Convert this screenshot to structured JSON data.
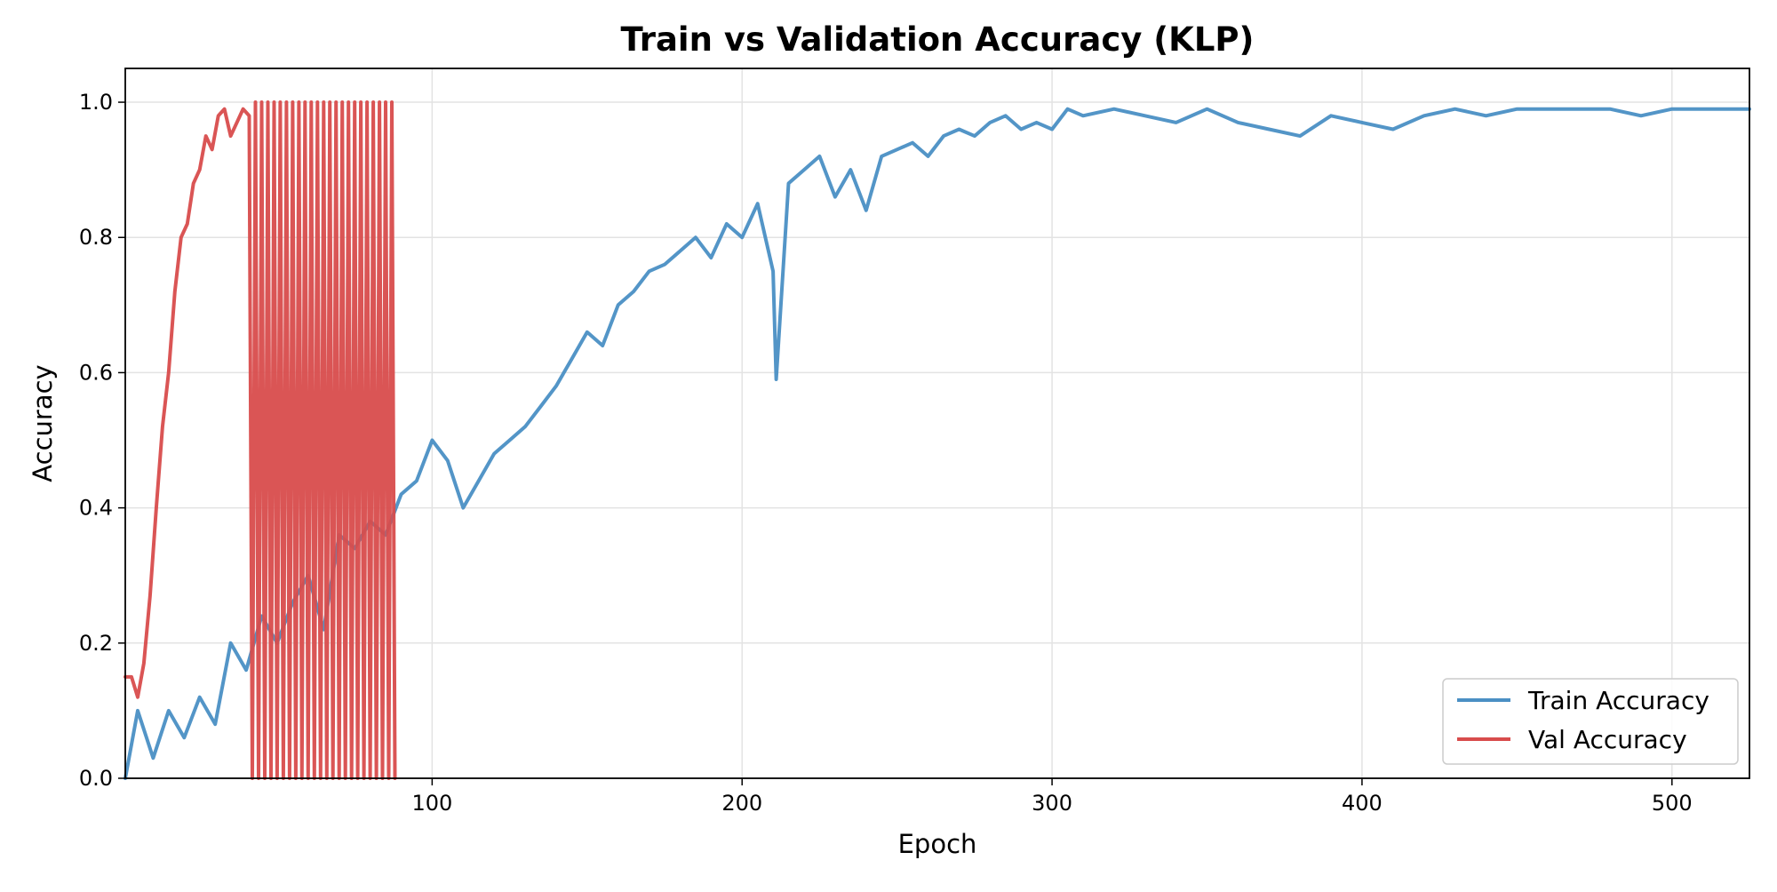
{
  "chart_data": {
    "type": "line",
    "title": "Train vs Validation Accuracy (KLP)",
    "xlabel": "Epoch",
    "ylabel": "Accuracy",
    "xlim": [
      1,
      525
    ],
    "ylim": [
      0.0,
      1.05
    ],
    "x_ticks": [
      100,
      200,
      300,
      400,
      500
    ],
    "x_tick_labels": [
      "100",
      "200",
      "300",
      "400",
      "500"
    ],
    "y_ticks": [
      0.0,
      0.2,
      0.4,
      0.6,
      0.8,
      1.0
    ],
    "y_tick_labels": [
      "0.0",
      "0.2",
      "0.4",
      "0.6",
      "0.8",
      "1.0"
    ],
    "grid": true,
    "legend_position": "lower-right",
    "series": [
      {
        "name": "Train Accuracy",
        "color": "#4a8fc4",
        "x": [
          1,
          5,
          10,
          15,
          20,
          25,
          30,
          35,
          40,
          45,
          50,
          55,
          60,
          65,
          70,
          75,
          80,
          85,
          90,
          95,
          100,
          105,
          110,
          115,
          120,
          125,
          130,
          135,
          140,
          145,
          150,
          155,
          160,
          165,
          170,
          175,
          180,
          185,
          190,
          195,
          200,
          205,
          210,
          211,
          215,
          220,
          225,
          230,
          235,
          240,
          245,
          250,
          255,
          260,
          265,
          270,
          275,
          280,
          285,
          290,
          295,
          300,
          305,
          310,
          320,
          330,
          340,
          350,
          360,
          370,
          380,
          390,
          400,
          410,
          420,
          430,
          440,
          450,
          460,
          470,
          480,
          490,
          500,
          510,
          520,
          525
        ],
        "y": [
          0.0,
          0.1,
          0.03,
          0.1,
          0.06,
          0.12,
          0.08,
          0.2,
          0.16,
          0.24,
          0.2,
          0.26,
          0.3,
          0.22,
          0.36,
          0.34,
          0.38,
          0.36,
          0.42,
          0.44,
          0.5,
          0.47,
          0.4,
          0.44,
          0.48,
          0.5,
          0.52,
          0.55,
          0.58,
          0.62,
          0.66,
          0.64,
          0.7,
          0.72,
          0.75,
          0.76,
          0.78,
          0.8,
          0.77,
          0.82,
          0.8,
          0.85,
          0.75,
          0.59,
          0.88,
          0.9,
          0.92,
          0.86,
          0.9,
          0.84,
          0.92,
          0.93,
          0.94,
          0.92,
          0.95,
          0.96,
          0.95,
          0.97,
          0.98,
          0.96,
          0.97,
          0.96,
          0.99,
          0.98,
          0.99,
          0.98,
          0.97,
          0.99,
          0.97,
          0.96,
          0.95,
          0.98,
          0.97,
          0.96,
          0.98,
          0.99,
          0.98,
          0.99,
          0.99,
          0.99,
          0.99,
          0.98,
          0.99,
          0.99,
          0.99,
          0.99
        ]
      },
      {
        "name": "Val Accuracy",
        "color": "#d84c4c",
        "x": [
          1,
          3,
          5,
          7,
          9,
          11,
          13,
          15,
          17,
          19,
          21,
          23,
          25,
          27,
          29,
          31,
          33,
          35,
          37,
          39,
          41,
          42,
          43,
          44,
          45,
          46,
          47,
          48,
          49,
          50,
          51,
          52,
          53,
          54,
          55,
          56,
          57,
          58,
          59,
          60,
          61,
          62,
          63,
          64,
          65,
          66,
          67,
          68,
          69,
          70,
          71,
          72,
          73,
          74,
          75,
          76,
          77,
          78,
          79,
          80,
          81,
          82,
          83,
          84,
          85,
          86,
          87,
          88
        ],
        "y": [
          0.15,
          0.15,
          0.12,
          0.17,
          0.27,
          0.4,
          0.52,
          0.6,
          0.72,
          0.8,
          0.82,
          0.88,
          0.9,
          0.95,
          0.93,
          0.98,
          0.99,
          0.95,
          0.97,
          0.99,
          0.98,
          0.0,
          1.0,
          0.0,
          1.0,
          0.0,
          1.0,
          0.0,
          1.0,
          0.0,
          1.0,
          0.0,
          1.0,
          0.0,
          1.0,
          0.0,
          1.0,
          0.0,
          1.0,
          0.0,
          1.0,
          0.0,
          1.0,
          0.0,
          1.0,
          0.0,
          1.0,
          0.0,
          1.0,
          0.0,
          1.0,
          0.0,
          1.0,
          0.0,
          1.0,
          0.0,
          1.0,
          0.0,
          1.0,
          0.0,
          1.0,
          0.0,
          1.0,
          0.0,
          1.0,
          0.0,
          1.0,
          0.0
        ]
      }
    ]
  }
}
